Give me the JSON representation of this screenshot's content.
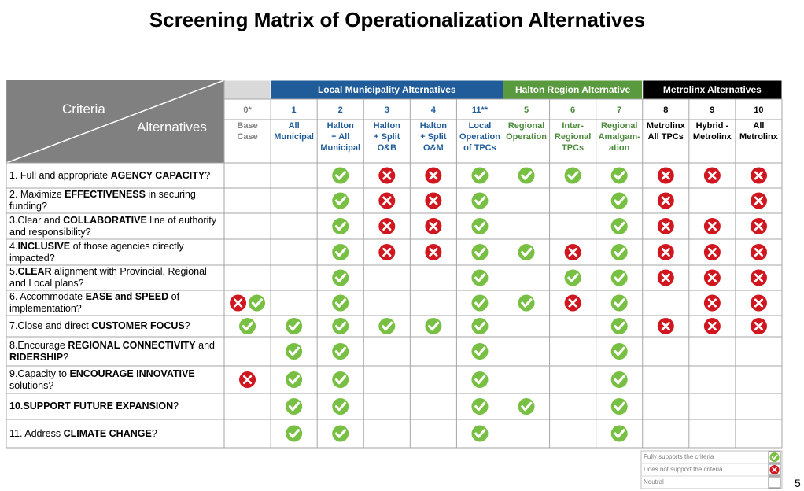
{
  "title": "Screening Matrix of Operationalization Alternatives",
  "header": {
    "criteria_label": "Criteria",
    "alternatives_label": "Alternatives"
  },
  "groups": [
    {
      "color": "#d9d9d9",
      "text_color": "#808080",
      "columns": [
        {
          "number": "0*",
          "name": [
            "Base",
            "Case"
          ]
        }
      ]
    },
    {
      "label": "Local Municipality Alternatives",
      "color": "#1f5c99",
      "text_color": "#1f5c99",
      "columns": [
        {
          "number": "1",
          "name": [
            "All",
            "Municipal"
          ]
        },
        {
          "number": "2",
          "name": [
            "Halton",
            "+ All",
            "Municipal"
          ]
        },
        {
          "number": "3",
          "name": [
            "Halton",
            "+ Split",
            "O&B"
          ]
        },
        {
          "number": "4",
          "name": [
            "Halton",
            "+ Split",
            "O&M"
          ]
        },
        {
          "number": "11**",
          "name": [
            "Local",
            "Operation",
            "of TPCs"
          ]
        }
      ]
    },
    {
      "label": "Halton Region Alternative",
      "color": "#5a9a3e",
      "text_color": "#4b8a3b",
      "columns": [
        {
          "number": "5",
          "name": [
            "Regional",
            "Operation"
          ]
        },
        {
          "number": "6",
          "name": [
            "Inter-",
            "Regional",
            "TPCs"
          ]
        },
        {
          "number": "7",
          "name": [
            "Regional",
            "Amalgam-",
            "ation"
          ]
        }
      ]
    },
    {
      "label": "Metrolinx Alternatives",
      "color": "#000000",
      "text_color": "#000000",
      "columns": [
        {
          "number": "8",
          "name": [
            "Metrolinx",
            "All TPCs"
          ]
        },
        {
          "number": "9",
          "name": [
            "Hybrid -",
            "Metrolinx"
          ]
        },
        {
          "number": "10",
          "name": [
            "All",
            "Metrolinx"
          ]
        }
      ]
    }
  ],
  "rows": [
    {
      "criterion": [
        {
          "text": "1. Full and appropriate "
        },
        {
          "bold": "AGENCY CAPACITY"
        },
        {
          "text": "?"
        }
      ],
      "cells": [
        [],
        [],
        [
          0
        ],
        [
          1
        ],
        [
          1
        ],
        [
          0
        ],
        [
          0
        ],
        [
          0
        ],
        [
          0
        ],
        [
          1
        ],
        [
          1
        ],
        [
          1
        ]
      ]
    },
    {
      "criterion": [
        {
          "text": "2. Maximize "
        },
        {
          "bold": "EFFECTIVENESS"
        },
        {
          "text": " in securing funding?"
        }
      ],
      "cells": [
        [],
        [],
        [
          0
        ],
        [
          1
        ],
        [
          1
        ],
        [
          0
        ],
        [],
        [],
        [
          0
        ],
        [
          1
        ],
        [],
        [
          1
        ]
      ]
    },
    {
      "criterion": [
        {
          "text": "3.Clear and "
        },
        {
          "bold": "COLLABORATIVE"
        },
        {
          "text": " line of authority and responsibility?"
        }
      ],
      "cells": [
        [],
        [],
        [
          0
        ],
        [
          1
        ],
        [
          1
        ],
        [
          0
        ],
        [],
        [],
        [
          0
        ],
        [
          1
        ],
        [
          1
        ],
        [
          1
        ]
      ]
    },
    {
      "criterion": [
        {
          "text": "4."
        },
        {
          "bold": "INCLUSIVE"
        },
        {
          "text": " of those agencies directly impacted?"
        }
      ],
      "cells": [
        [],
        [],
        [
          0
        ],
        [
          1
        ],
        [
          1
        ],
        [
          0
        ],
        [
          0
        ],
        [
          1
        ],
        [
          0
        ],
        [
          1
        ],
        [
          1
        ],
        [
          1
        ]
      ]
    },
    {
      "criterion": [
        {
          "text": "5."
        },
        {
          "bold": "CLEAR"
        },
        {
          "text": " alignment with Provincial, Regional and Local plans?"
        }
      ],
      "cells": [
        [],
        [],
        [
          0
        ],
        [],
        [],
        [
          0
        ],
        [],
        [
          0
        ],
        [
          0
        ],
        [
          1
        ],
        [
          1
        ],
        [
          1
        ]
      ]
    },
    {
      "criterion": [
        {
          "text": "6. Accommodate "
        },
        {
          "bold": "EASE and SPEED"
        },
        {
          "text": " of implementation?"
        }
      ],
      "cells": [
        [
          1,
          0
        ],
        [],
        [
          0
        ],
        [],
        [],
        [
          0
        ],
        [
          0
        ],
        [
          1
        ],
        [
          0
        ],
        [],
        [
          1
        ],
        [
          1
        ]
      ]
    },
    {
      "criterion": [
        {
          "text": "7.Close and direct "
        },
        {
          "bold": "CUSTOMER FOCUS"
        },
        {
          "text": "?"
        }
      ],
      "cells": [
        [
          0
        ],
        [
          0
        ],
        [
          0
        ],
        [
          0
        ],
        [
          0
        ],
        [
          0
        ],
        [],
        [],
        [
          0
        ],
        [
          1
        ],
        [
          1
        ],
        [
          1
        ]
      ]
    },
    {
      "criterion": [
        {
          "text": "8.Encourage "
        },
        {
          "bold": "REGIONAL CONNECTIVITY"
        },
        {
          "text": " and "
        },
        {
          "bold": "RIDERSHIP"
        },
        {
          "text": "?"
        }
      ],
      "cells": [
        [],
        [
          0
        ],
        [
          0
        ],
        [],
        [],
        [
          0
        ],
        [],
        [],
        [
          0
        ],
        [],
        [],
        []
      ]
    },
    {
      "criterion": [
        {
          "text": "9.Capacity to "
        },
        {
          "bold": "ENCOURAGE INNOVATIVE"
        },
        {
          "text": " solutions?"
        }
      ],
      "cells": [
        [
          1
        ],
        [
          0
        ],
        [
          0
        ],
        [],
        [],
        [
          0
        ],
        [],
        [],
        [
          0
        ],
        [],
        [],
        []
      ]
    },
    {
      "criterion": [
        {
          "bold": "10.SUPPORT FUTURE EXPANSION"
        },
        {
          "text": "?"
        }
      ],
      "cells": [
        [],
        [
          0
        ],
        [
          0
        ],
        [],
        [],
        [
          0
        ],
        [
          0
        ],
        [],
        [
          0
        ],
        [],
        [],
        []
      ]
    },
    {
      "criterion": [
        {
          "text": "11. Address "
        },
        {
          "bold": "CLIMATE CHANGE"
        },
        {
          "text": "?"
        }
      ],
      "cells": [
        [],
        [
          0
        ],
        [
          0
        ],
        [],
        [],
        [
          0
        ],
        [],
        [],
        [
          0
        ],
        [],
        [],
        []
      ]
    }
  ],
  "legend": [
    {
      "label": "Fully supports the criteria"
    },
    {
      "label": "Does not support the criteria"
    },
    {
      "label": "Neutral"
    }
  ],
  "page_number": "5"
}
